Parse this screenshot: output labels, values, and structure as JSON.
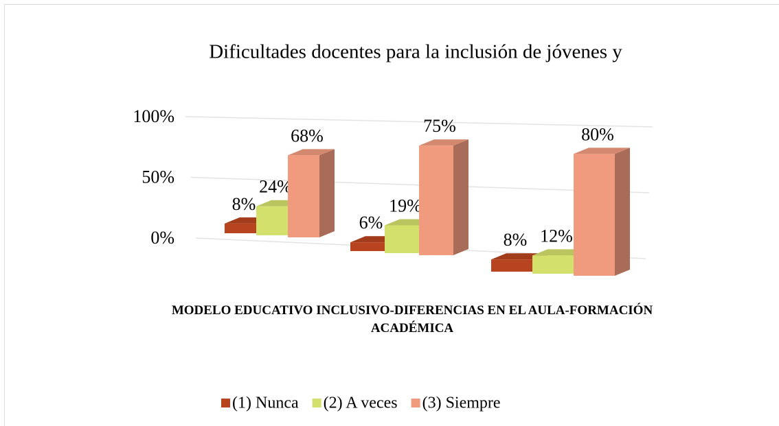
{
  "chart_data": {
    "type": "bar3d",
    "title": "Dificultades docentes para la inclusión de jóvenes y",
    "x_label": "MODELO EDUCATIVO INCLUSIVO-DIFERENCIAS EN EL AULA-FORMACIÓN ACADÉMICA",
    "categories": [
      null,
      null,
      null
    ],
    "series": [
      {
        "name": "(1) Nunca",
        "color": "#b8441f",
        "values": [
          8,
          6,
          8
        ],
        "value_labels": [
          "8%",
          "6%",
          "8%"
        ]
      },
      {
        "name": "(2) A veces",
        "color": "#d3e06c",
        "values": [
          24,
          19,
          12
        ],
        "value_labels": [
          "24%",
          "19%",
          "12%"
        ]
      },
      {
        "name": "(3) Siempre",
        "color": "#f09a7e",
        "values": [
          68,
          75,
          80
        ],
        "value_labels": [
          "68%",
          "75%",
          "80%"
        ]
      }
    ],
    "ylim": [
      0,
      100
    ],
    "yticks": [
      {
        "value": 0,
        "label": "0%"
      },
      {
        "value": 50,
        "label": "50%"
      },
      {
        "value": 100,
        "label": "100%"
      }
    ],
    "grid": true,
    "legend": "bottom"
  }
}
